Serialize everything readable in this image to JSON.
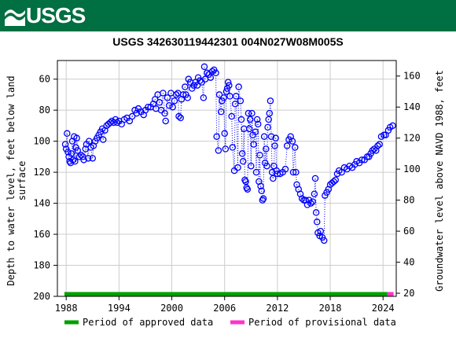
{
  "header": {
    "logo_text": "USGS",
    "logo_icon": "usgs-wave-icon",
    "background_color": "#006f41"
  },
  "chart_data": {
    "type": "scatter",
    "title": "USGS 342630119442301 004N027W08M005S",
    "ylabel_left": [
      "Depth to water level, feet below land",
      "surface"
    ],
    "ylabel_right": "Groundwater level above NAVD 1988, feet",
    "x_ticks": [
      "1988",
      "1994",
      "2000",
      "2006",
      "2012",
      "2018",
      "2024"
    ],
    "y_left_ticks": [
      "60",
      "80",
      "100",
      "120",
      "140",
      "160",
      "180",
      "200"
    ],
    "y_right_ticks": [
      "160",
      "140",
      "120",
      "100",
      "80",
      "60",
      "40",
      "20"
    ],
    "xlim": [
      1987.0,
      2025.5
    ],
    "ylim_left": [
      200,
      48
    ],
    "ylim_right": [
      18,
      170
    ],
    "y_left_inverted": true,
    "grid": true,
    "series_color": "#0000ff",
    "approved_color": "#00a000",
    "provisional_color": "#ff33cc",
    "approved_period": [
      1987.8,
      2024.5
    ],
    "provisional_period": [
      2024.5,
      2025.2
    ],
    "legend": [
      {
        "label": "Period of approved data",
        "color": "#00a000"
      },
      {
        "label": "Period of provisional data",
        "color": "#ff33cc"
      }
    ],
    "points": [
      [
        1987.9,
        102
      ],
      [
        1988.0,
        105
      ],
      [
        1988.1,
        95
      ],
      [
        1988.2,
        107
      ],
      [
        1988.3,
        110
      ],
      [
        1988.4,
        113
      ],
      [
        1988.5,
        114
      ],
      [
        1988.6,
        108
      ],
      [
        1988.7,
        100
      ],
      [
        1988.8,
        112
      ],
      [
        1988.9,
        97
      ],
      [
        1989.0,
        113
      ],
      [
        1989.1,
        104
      ],
      [
        1989.2,
        98
      ],
      [
        1989.3,
        106
      ],
      [
        1989.5,
        110
      ],
      [
        1989.7,
        109
      ],
      [
        1989.9,
        110
      ],
      [
        1990.0,
        112
      ],
      [
        1990.2,
        105
      ],
      [
        1990.3,
        102
      ],
      [
        1990.5,
        111
      ],
      [
        1990.6,
        100
      ],
      [
        1990.8,
        104
      ],
      [
        1991.0,
        111
      ],
      [
        1991.1,
        103
      ],
      [
        1991.3,
        100
      ],
      [
        1991.5,
        98
      ],
      [
        1991.7,
        96
      ],
      [
        1991.9,
        94
      ],
      [
        1992.1,
        92
      ],
      [
        1992.2,
        99
      ],
      [
        1992.4,
        93
      ],
      [
        1992.6,
        90
      ],
      [
        1992.8,
        89
      ],
      [
        1993.0,
        88
      ],
      [
        1993.2,
        87
      ],
      [
        1993.4,
        88
      ],
      [
        1993.6,
        86
      ],
      [
        1993.8,
        88
      ],
      [
        1994.0,
        87
      ],
      [
        1994.3,
        89
      ],
      [
        1994.6,
        86
      ],
      [
        1994.9,
        85
      ],
      [
        1995.2,
        87
      ],
      [
        1995.5,
        84
      ],
      [
        1995.8,
        80
      ],
      [
        1996.0,
        82
      ],
      [
        1996.2,
        79
      ],
      [
        1996.5,
        81
      ],
      [
        1996.8,
        83
      ],
      [
        1997.0,
        80
      ],
      [
        1997.3,
        78
      ],
      [
        1997.6,
        78
      ],
      [
        1997.9,
        76
      ],
      [
        1998.1,
        73
      ],
      [
        1998.2,
        79
      ],
      [
        1998.4,
        70
      ],
      [
        1998.6,
        75
      ],
      [
        1998.8,
        80
      ],
      [
        1999.0,
        69
      ],
      [
        1999.2,
        82
      ],
      [
        1999.3,
        87
      ],
      [
        1999.5,
        72
      ],
      [
        1999.7,
        77
      ],
      [
        1999.9,
        69
      ],
      [
        2000.1,
        78
      ],
      [
        2000.3,
        74
      ],
      [
        2000.5,
        70
      ],
      [
        2000.7,
        69
      ],
      [
        2000.8,
        84
      ],
      [
        2001.0,
        85
      ],
      [
        2001.1,
        73
      ],
      [
        2001.3,
        70
      ],
      [
        2001.5,
        65
      ],
      [
        2001.6,
        70
      ],
      [
        2001.8,
        72
      ],
      [
        2001.9,
        60
      ],
      [
        2002.1,
        62
      ],
      [
        2002.3,
        66
      ],
      [
        2002.5,
        64
      ],
      [
        2002.7,
        62
      ],
      [
        2002.9,
        64
      ],
      [
        2003.0,
        59
      ],
      [
        2003.2,
        61
      ],
      [
        2003.4,
        62
      ],
      [
        2003.6,
        72
      ],
      [
        2003.7,
        52
      ],
      [
        2003.8,
        60
      ],
      [
        2004.0,
        56
      ],
      [
        2004.2,
        57
      ],
      [
        2004.4,
        59
      ],
      [
        2004.6,
        55
      ],
      [
        2004.8,
        54
      ],
      [
        2005.0,
        56
      ],
      [
        2005.1,
        97
      ],
      [
        2005.3,
        106
      ],
      [
        2005.4,
        70
      ],
      [
        2005.6,
        81
      ],
      [
        2005.7,
        74
      ],
      [
        2005.9,
        72
      ],
      [
        2006.0,
        95
      ],
      [
        2006.1,
        105
      ],
      [
        2006.2,
        68
      ],
      [
        2006.3,
        66
      ],
      [
        2006.4,
        62
      ],
      [
        2006.5,
        64
      ],
      [
        2006.6,
        71
      ],
      [
        2006.8,
        84
      ],
      [
        2006.9,
        104
      ],
      [
        2007.1,
        119
      ],
      [
        2007.2,
        76
      ],
      [
        2007.3,
        71
      ],
      [
        2007.5,
        117
      ],
      [
        2007.6,
        65
      ],
      [
        2007.8,
        74
      ],
      [
        2007.9,
        86
      ],
      [
        2008.0,
        108
      ],
      [
        2008.1,
        113
      ],
      [
        2008.2,
        92
      ],
      [
        2008.3,
        125
      ],
      [
        2008.4,
        126
      ],
      [
        2008.5,
        130
      ],
      [
        2008.6,
        131
      ],
      [
        2008.7,
        82
      ],
      [
        2008.8,
        92
      ],
      [
        2008.9,
        86
      ],
      [
        2009.0,
        116
      ],
      [
        2009.1,
        82
      ],
      [
        2009.2,
        96
      ],
      [
        2009.3,
        102
      ],
      [
        2009.5,
        94
      ],
      [
        2009.6,
        120
      ],
      [
        2009.7,
        86
      ],
      [
        2009.8,
        89
      ],
      [
        2009.9,
        126
      ],
      [
        2010.0,
        109
      ],
      [
        2010.1,
        129
      ],
      [
        2010.2,
        132
      ],
      [
        2010.3,
        138
      ],
      [
        2010.4,
        137
      ],
      [
        2010.5,
        97
      ],
      [
        2010.6,
        114
      ],
      [
        2010.7,
        105
      ],
      [
        2010.8,
        116
      ],
      [
        2010.9,
        91
      ],
      [
        2011.0,
        86
      ],
      [
        2011.1,
        82
      ],
      [
        2011.2,
        74
      ],
      [
        2011.3,
        97
      ],
      [
        2011.4,
        120
      ],
      [
        2011.5,
        124
      ],
      [
        2011.6,
        116
      ],
      [
        2011.7,
        103
      ],
      [
        2011.8,
        98
      ],
      [
        2011.9,
        119
      ],
      [
        2012.0,
        121
      ],
      [
        2012.3,
        121
      ],
      [
        2012.6,
        120
      ],
      [
        2012.9,
        118
      ],
      [
        2013.1,
        103
      ],
      [
        2013.3,
        99
      ],
      [
        2013.5,
        97
      ],
      [
        2013.7,
        100
      ],
      [
        2013.8,
        120
      ],
      [
        2014.0,
        104
      ],
      [
        2014.1,
        120
      ],
      [
        2014.2,
        128
      ],
      [
        2014.4,
        131
      ],
      [
        2014.6,
        134
      ],
      [
        2014.8,
        137
      ],
      [
        2015.0,
        138
      ],
      [
        2015.2,
        138
      ],
      [
        2015.4,
        141
      ],
      [
        2015.6,
        138
      ],
      [
        2015.8,
        140
      ],
      [
        2016.0,
        139
      ],
      [
        2016.2,
        134
      ],
      [
        2016.3,
        124
      ],
      [
        2016.4,
        146
      ],
      [
        2016.5,
        152
      ],
      [
        2016.6,
        159
      ],
      [
        2016.8,
        161
      ],
      [
        2016.9,
        158
      ],
      [
        2017.1,
        162
      ],
      [
        2017.3,
        164
      ],
      [
        2017.4,
        135
      ],
      [
        2017.6,
        133
      ],
      [
        2017.8,
        131
      ],
      [
        2018.0,
        128
      ],
      [
        2018.2,
        127
      ],
      [
        2018.4,
        126
      ],
      [
        2018.6,
        125
      ],
      [
        2018.8,
        121
      ],
      [
        2019.0,
        119
      ],
      [
        2019.3,
        120
      ],
      [
        2019.6,
        117
      ],
      [
        2019.9,
        118
      ],
      [
        2020.2,
        116
      ],
      [
        2020.5,
        117
      ],
      [
        2020.8,
        115
      ],
      [
        2021.0,
        113
      ],
      [
        2021.3,
        114
      ],
      [
        2021.6,
        112
      ],
      [
        2021.9,
        112
      ],
      [
        2022.2,
        110
      ],
      [
        2022.4,
        110
      ],
      [
        2022.6,
        108
      ],
      [
        2022.8,
        106
      ],
      [
        2023.0,
        105
      ],
      [
        2023.2,
        106
      ],
      [
        2023.4,
        103
      ],
      [
        2023.6,
        102
      ],
      [
        2023.8,
        97
      ],
      [
        2024.1,
        96
      ],
      [
        2024.3,
        96
      ],
      [
        2024.6,
        93
      ],
      [
        2024.8,
        91
      ],
      [
        2025.1,
        90
      ]
    ]
  }
}
